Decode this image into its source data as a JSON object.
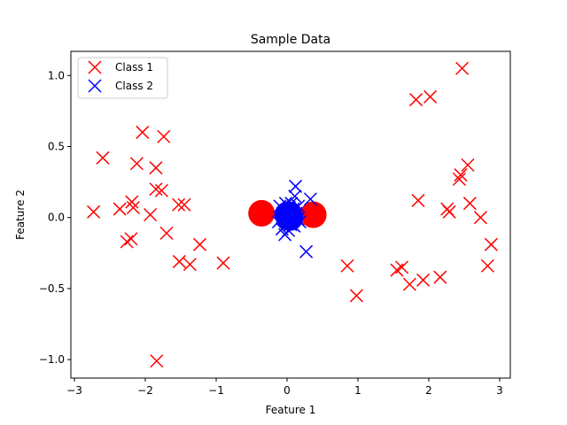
{
  "chart_data": {
    "type": "scatter",
    "title": "Sample Data",
    "xlabel": "Feature 1",
    "ylabel": "Feature 2",
    "xlim": [
      -3.05,
      3.15
    ],
    "ylim": [
      -1.13,
      1.17
    ],
    "xticks": [
      -3,
      -2,
      -1,
      0,
      1,
      2,
      3
    ],
    "xtick_labels": [
      "−3",
      "−2",
      "−1",
      "0",
      "1",
      "2",
      "3"
    ],
    "yticks": [
      -1.0,
      -0.5,
      0.0,
      0.5,
      1.0
    ],
    "ytick_labels": [
      "−1.0",
      "−0.5",
      "0.0",
      "0.5",
      "1.0"
    ],
    "grid": false,
    "legend_position": "top-left",
    "series": [
      {
        "name": "Class 1",
        "color": "#ff0000",
        "marker": "x",
        "points": [
          [
            -2.73,
            0.04
          ],
          [
            -2.6,
            0.42
          ],
          [
            -2.36,
            0.06
          ],
          [
            -2.26,
            -0.17
          ],
          [
            -2.2,
            -0.15
          ],
          [
            -2.19,
            0.11
          ],
          [
            -2.17,
            0.07
          ],
          [
            -2.12,
            0.38
          ],
          [
            -2.04,
            0.6
          ],
          [
            -1.93,
            0.02
          ],
          [
            -1.85,
            0.35
          ],
          [
            -1.85,
            0.2
          ],
          [
            -1.77,
            0.19
          ],
          [
            -1.74,
            0.57
          ],
          [
            -1.7,
            -0.11
          ],
          [
            -1.53,
            0.09
          ],
          [
            -1.52,
            -0.31
          ],
          [
            -1.45,
            0.09
          ],
          [
            -1.37,
            -0.33
          ],
          [
            -1.23,
            -0.19
          ],
          [
            -0.9,
            -0.32
          ],
          [
            -1.84,
            -1.01
          ],
          [
            0.85,
            -0.34
          ],
          [
            0.98,
            -0.55
          ],
          [
            1.55,
            -0.37
          ],
          [
            1.62,
            -0.35
          ],
          [
            1.73,
            -0.47
          ],
          [
            1.82,
            0.83
          ],
          [
            1.85,
            0.12
          ],
          [
            1.92,
            -0.44
          ],
          [
            2.02,
            0.85
          ],
          [
            2.16,
            -0.42
          ],
          [
            2.26,
            0.06
          ],
          [
            2.29,
            0.04
          ],
          [
            2.43,
            0.27
          ],
          [
            2.45,
            0.3
          ],
          [
            2.47,
            1.05
          ],
          [
            2.55,
            0.37
          ],
          [
            2.58,
            0.1
          ],
          [
            2.73,
            0.0
          ],
          [
            2.83,
            -0.34
          ],
          [
            2.88,
            -0.19
          ]
        ]
      },
      {
        "name": "Class 2",
        "color": "#0000ff",
        "marker": "x",
        "points": [
          [
            -0.12,
            -0.03
          ],
          [
            -0.1,
            0.08
          ],
          [
            -0.06,
            0.02
          ],
          [
            -0.04,
            0.05
          ],
          [
            -0.03,
            -0.12
          ],
          [
            -0.02,
            0.1
          ],
          [
            0.0,
            -0.02
          ],
          [
            0.01,
            0.03
          ],
          [
            0.02,
            -0.09
          ],
          [
            0.03,
            0.07
          ],
          [
            0.04,
            0.0
          ],
          [
            0.05,
            -0.05
          ],
          [
            0.06,
            0.1
          ],
          [
            0.07,
            0.04
          ],
          [
            0.08,
            -0.02
          ],
          [
            0.09,
            0.06
          ],
          [
            0.1,
            -0.06
          ],
          [
            0.12,
            0.22
          ],
          [
            0.13,
            0.03
          ],
          [
            0.15,
            -0.01
          ],
          [
            0.16,
            0.08
          ],
          [
            0.18,
            -0.03
          ],
          [
            0.27,
            -0.24
          ],
          [
            0.33,
            0.13
          ],
          [
            -0.07,
            -0.08
          ],
          [
            0.11,
            0.15
          ]
        ]
      },
      {
        "name": "",
        "color": "#ff0000",
        "marker": "o",
        "points": [
          [
            -0.36,
            0.03
          ],
          [
            0.37,
            0.02
          ]
        ]
      },
      {
        "name": "",
        "color": "#0000ff",
        "marker": "o",
        "points": [
          [
            0.01,
            0.02
          ],
          [
            0.04,
            0.0
          ]
        ]
      }
    ]
  }
}
